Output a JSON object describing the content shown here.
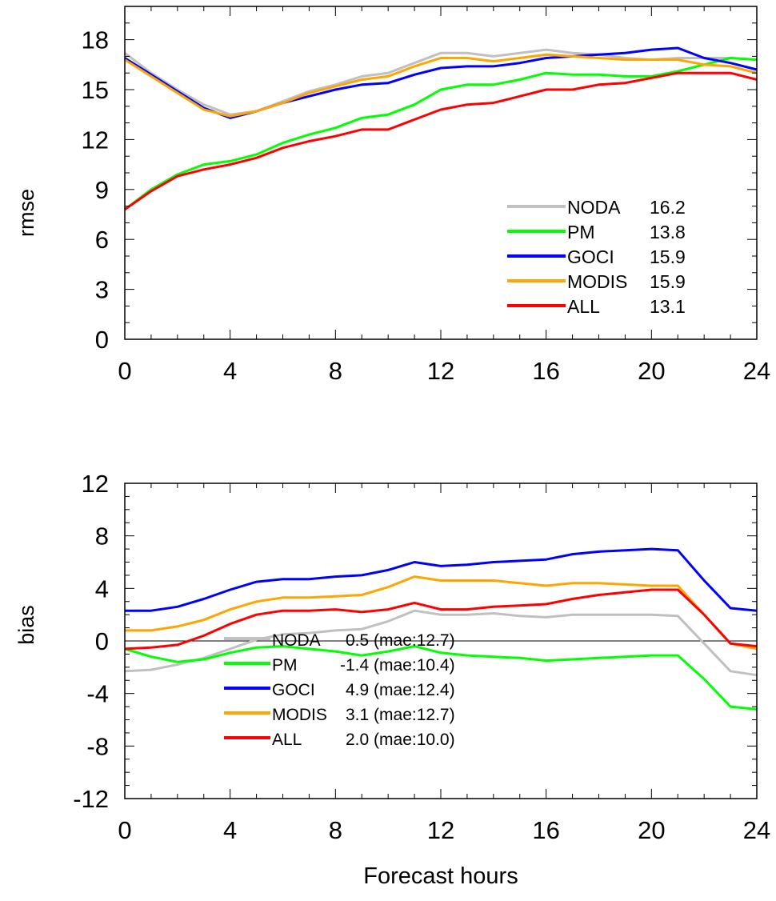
{
  "chart_data": [
    {
      "type": "line",
      "ylabel": "rmse",
      "xlabel": "",
      "xlim": [
        0,
        24
      ],
      "ylim": [
        0,
        20
      ],
      "xticks": [
        0,
        4,
        8,
        12,
        16,
        20,
        24
      ],
      "yticks": [
        0,
        3,
        6,
        9,
        12,
        15,
        18
      ],
      "legend_placement": "right, lower half",
      "series": [
        {
          "name": "NODA",
          "stat": "16.2",
          "color": "#c0c0c0",
          "x": [
            0,
            1,
            2,
            3,
            4,
            5,
            6,
            7,
            8,
            9,
            10,
            11,
            12,
            13,
            14,
            15,
            16,
            17,
            18,
            19,
            20,
            21,
            22,
            23,
            24
          ],
          "values": [
            17.2,
            16.0,
            15.0,
            14.1,
            13.5,
            13.7,
            14.3,
            14.9,
            15.3,
            15.8,
            16.0,
            16.6,
            17.2,
            17.2,
            17.0,
            17.2,
            17.4,
            17.2,
            17.1,
            16.9,
            16.8,
            16.9,
            16.9,
            16.9,
            16.8
          ]
        },
        {
          "name": "PM",
          "stat": "13.8",
          "color": "#00ff00",
          "x": [
            0,
            1,
            2,
            3,
            4,
            5,
            6,
            7,
            8,
            9,
            10,
            11,
            12,
            13,
            14,
            15,
            16,
            17,
            18,
            19,
            20,
            21,
            22,
            23,
            24
          ],
          "values": [
            7.8,
            9.0,
            9.9,
            10.5,
            10.7,
            11.1,
            11.8,
            12.3,
            12.7,
            13.3,
            13.5,
            14.1,
            15.0,
            15.3,
            15.3,
            15.6,
            16.0,
            15.9,
            15.9,
            15.8,
            15.8,
            16.1,
            16.5,
            16.9,
            16.8
          ]
        },
        {
          "name": "GOCI",
          "stat": "15.9",
          "color": "#0000ff",
          "x": [
            0,
            1,
            2,
            3,
            4,
            5,
            6,
            7,
            8,
            9,
            10,
            11,
            12,
            13,
            14,
            15,
            16,
            17,
            18,
            19,
            20,
            21,
            22,
            23,
            24
          ],
          "values": [
            16.9,
            15.9,
            14.9,
            13.9,
            13.3,
            13.7,
            14.2,
            14.6,
            15.0,
            15.3,
            15.4,
            15.9,
            16.3,
            16.4,
            16.4,
            16.6,
            16.9,
            17.0,
            17.1,
            17.2,
            17.4,
            17.5,
            16.9,
            16.6,
            16.2
          ]
        },
        {
          "name": "MODIS",
          "stat": "15.9",
          "color": "#ffa500",
          "x": [
            0,
            1,
            2,
            3,
            4,
            5,
            6,
            7,
            8,
            9,
            10,
            11,
            12,
            13,
            14,
            15,
            16,
            17,
            18,
            19,
            20,
            21,
            22,
            23,
            24
          ],
          "values": [
            16.8,
            15.8,
            14.8,
            13.8,
            13.4,
            13.7,
            14.2,
            14.8,
            15.2,
            15.6,
            15.8,
            16.4,
            16.9,
            16.9,
            16.7,
            16.9,
            17.1,
            17.0,
            16.9,
            16.8,
            16.8,
            16.8,
            16.5,
            16.4,
            16.0
          ]
        },
        {
          "name": "ALL",
          "stat": "13.1",
          "color": "#ff0000",
          "x": [
            0,
            1,
            2,
            3,
            4,
            5,
            6,
            7,
            8,
            9,
            10,
            11,
            12,
            13,
            14,
            15,
            16,
            17,
            18,
            19,
            20,
            21,
            22,
            23,
            24
          ],
          "values": [
            7.8,
            8.9,
            9.8,
            10.2,
            10.5,
            10.9,
            11.5,
            11.9,
            12.2,
            12.6,
            12.6,
            13.2,
            13.8,
            14.1,
            14.2,
            14.6,
            15.0,
            15.0,
            15.3,
            15.4,
            15.7,
            16.0,
            16.0,
            16.0,
            15.6
          ]
        }
      ]
    },
    {
      "type": "line",
      "ylabel": "bias",
      "xlabel": "Forecast hours",
      "xlim": [
        0,
        24
      ],
      "ylim": [
        -12,
        12
      ],
      "xticks": [
        0,
        4,
        8,
        12,
        16,
        20,
        24
      ],
      "yticks": [
        -12,
        -8,
        -4,
        0,
        4,
        8,
        12
      ],
      "zero_line": true,
      "legend_placement": "bottom-left",
      "series": [
        {
          "name": "NODA",
          "stat": "0.5 (mae:12.7)",
          "color": "#c0c0c0",
          "x": [
            0,
            1,
            2,
            3,
            4,
            5,
            6,
            7,
            8,
            9,
            10,
            11,
            12,
            13,
            14,
            15,
            16,
            17,
            18,
            19,
            20,
            21,
            22,
            23,
            24
          ],
          "values": [
            -2.3,
            -2.2,
            -1.8,
            -1.3,
            -0.6,
            0.1,
            0.5,
            0.6,
            0.8,
            0.9,
            1.5,
            2.3,
            2.0,
            2.0,
            2.1,
            1.9,
            1.8,
            2.0,
            2.0,
            2.0,
            2.0,
            1.9,
            -0.2,
            -2.3,
            -2.6
          ]
        },
        {
          "name": "PM",
          "stat": "-1.4 (mae:10.4)",
          "color": "#00ff00",
          "x": [
            0,
            1,
            2,
            3,
            4,
            5,
            6,
            7,
            8,
            9,
            10,
            11,
            12,
            13,
            14,
            15,
            16,
            17,
            18,
            19,
            20,
            21,
            22,
            23,
            24
          ],
          "values": [
            -0.6,
            -1.2,
            -1.6,
            -1.4,
            -0.9,
            -0.5,
            -0.4,
            -0.6,
            -0.8,
            -1.1,
            -0.8,
            -0.4,
            -0.9,
            -1.1,
            -1.2,
            -1.3,
            -1.5,
            -1.4,
            -1.3,
            -1.2,
            -1.1,
            -1.1,
            -2.9,
            -5.0,
            -5.2
          ]
        },
        {
          "name": "GOCI",
          "stat": "4.9 (mae:12.4)",
          "color": "#0000ff",
          "x": [
            0,
            1,
            2,
            3,
            4,
            5,
            6,
            7,
            8,
            9,
            10,
            11,
            12,
            13,
            14,
            15,
            16,
            17,
            18,
            19,
            20,
            21,
            22,
            23,
            24
          ],
          "values": [
            2.3,
            2.3,
            2.6,
            3.2,
            3.9,
            4.5,
            4.7,
            4.7,
            4.9,
            5.0,
            5.4,
            6.0,
            5.7,
            5.8,
            6.0,
            6.1,
            6.2,
            6.6,
            6.8,
            6.9,
            7.0,
            6.9,
            4.6,
            2.5,
            2.3
          ]
        },
        {
          "name": "MODIS",
          "stat": "3.1 (mae:12.7)",
          "color": "#ffa500",
          "x": [
            0,
            1,
            2,
            3,
            4,
            5,
            6,
            7,
            8,
            9,
            10,
            11,
            12,
            13,
            14,
            15,
            16,
            17,
            18,
            19,
            20,
            21,
            22,
            23,
            24
          ],
          "values": [
            0.8,
            0.8,
            1.1,
            1.6,
            2.4,
            3.0,
            3.3,
            3.3,
            3.4,
            3.5,
            4.1,
            4.9,
            4.6,
            4.6,
            4.6,
            4.4,
            4.2,
            4.4,
            4.4,
            4.3,
            4.2,
            4.2,
            2.0,
            -0.2,
            -0.6
          ]
        },
        {
          "name": "ALL",
          "stat": "2.0 (mae:10.0)",
          "color": "#ff0000",
          "x": [
            0,
            1,
            2,
            3,
            4,
            5,
            6,
            7,
            8,
            9,
            10,
            11,
            12,
            13,
            14,
            15,
            16,
            17,
            18,
            19,
            20,
            21,
            22,
            23,
            24
          ],
          "values": [
            -0.6,
            -0.5,
            -0.3,
            0.4,
            1.3,
            2.0,
            2.3,
            2.3,
            2.4,
            2.2,
            2.4,
            2.9,
            2.4,
            2.4,
            2.6,
            2.7,
            2.8,
            3.2,
            3.5,
            3.7,
            3.9,
            3.9,
            2.0,
            -0.2,
            -0.4
          ]
        }
      ]
    }
  ]
}
